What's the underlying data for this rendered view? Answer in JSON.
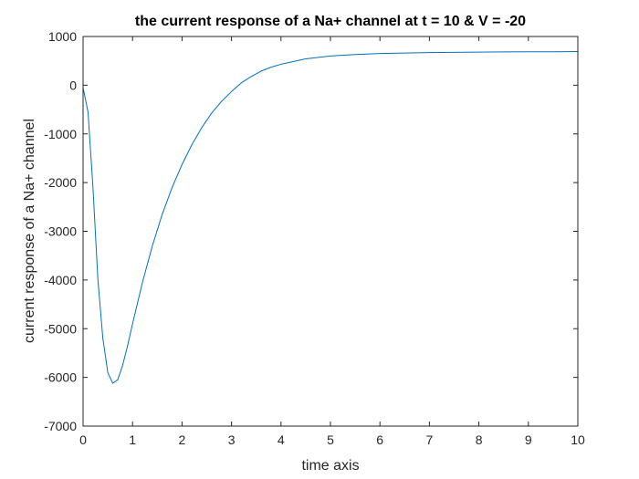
{
  "chart_data": {
    "type": "line",
    "title": "the current response of a Na+ channel at t = 10 & V = -20",
    "xlabel": "time axis",
    "ylabel": "current response of a Na+ channel",
    "xlim": [
      0,
      10
    ],
    "ylim": [
      -7000,
      1000
    ],
    "xticks": [
      0,
      1,
      2,
      3,
      4,
      5,
      6,
      7,
      8,
      9,
      10
    ],
    "yticks": [
      -7000,
      -6000,
      -5000,
      -4000,
      -3000,
      -2000,
      -1000,
      0,
      1000
    ],
    "grid": false,
    "series": [
      {
        "color": "#0072BD",
        "x": [
          0,
          0.1,
          0.2,
          0.3,
          0.4,
          0.5,
          0.6,
          0.7,
          0.8,
          0.9,
          1.0,
          1.2,
          1.4,
          1.6,
          1.8,
          2.0,
          2.2,
          2.4,
          2.6,
          2.8,
          3.0,
          3.2,
          3.4,
          3.6,
          3.8,
          4.0,
          4.5,
          5.0,
          5.5,
          6.0,
          6.5,
          7.0,
          7.5,
          8.0,
          8.5,
          9.0,
          9.5,
          10.0
        ],
        "y": [
          -50,
          -550,
          -2100,
          -4000,
          -5200,
          -5900,
          -6120,
          -6050,
          -5750,
          -5350,
          -4900,
          -4050,
          -3300,
          -2650,
          -2100,
          -1630,
          -1220,
          -870,
          -570,
          -330,
          -130,
          50,
          180,
          290,
          370,
          430,
          540,
          600,
          630,
          650,
          660,
          670,
          675,
          680,
          683,
          685,
          687,
          690
        ]
      }
    ]
  }
}
